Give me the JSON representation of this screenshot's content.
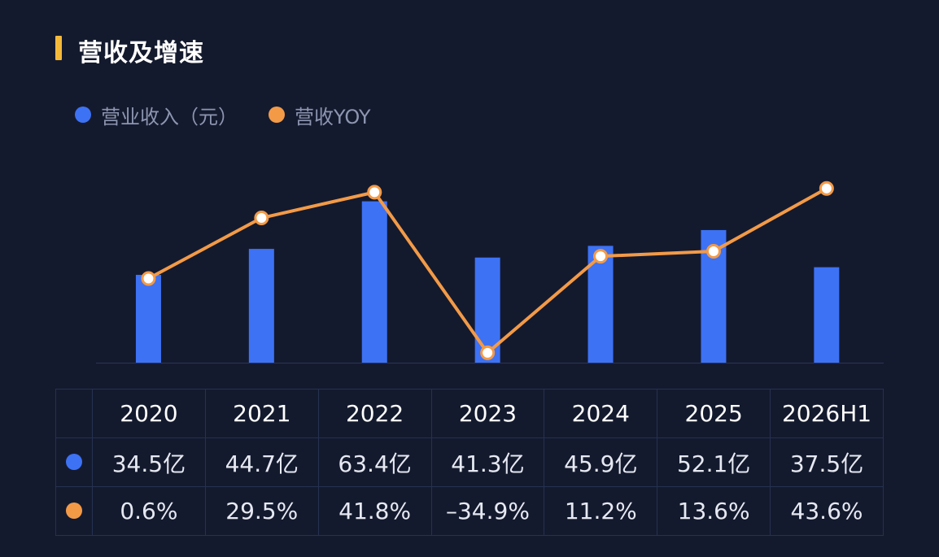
{
  "title": "营收及增速",
  "colors": {
    "bar": "#3d72f5",
    "line": "#f39a47",
    "accent": "#f5b93a",
    "background": "#141a2e"
  },
  "legend": [
    {
      "label": "营业收入（元）",
      "color": "#3d72f5"
    },
    {
      "label": "营收YOY",
      "color": "#f39a47"
    }
  ],
  "chart_data": {
    "type": "bar",
    "categories": [
      "2020",
      "2021",
      "2022",
      "2023",
      "2024",
      "2025",
      "2026H1"
    ],
    "series": [
      {
        "name": "营业收入（元）",
        "type": "bar",
        "unit": "亿",
        "values": [
          34.5,
          44.7,
          63.4,
          41.3,
          45.9,
          52.1,
          37.5
        ]
      },
      {
        "name": "营收YOY",
        "type": "line",
        "unit": "%",
        "values": [
          0.6,
          29.5,
          41.8,
          -34.9,
          11.2,
          13.6,
          43.6
        ]
      }
    ],
    "grid": false,
    "legend_position": "top-left"
  },
  "table": {
    "headers": [
      "2020",
      "2021",
      "2022",
      "2023",
      "2024",
      "2025",
      "2026H1"
    ],
    "revenue": [
      "34.5亿",
      "44.7亿",
      "63.4亿",
      "41.3亿",
      "45.9亿",
      "52.1亿",
      "37.5亿"
    ],
    "yoy": [
      "0.6%",
      "29.5%",
      "41.8%",
      "–34.9%",
      "11.2%",
      "13.6%",
      "43.6%"
    ]
  }
}
